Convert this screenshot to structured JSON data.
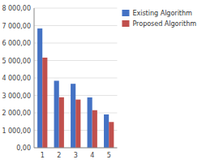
{
  "chart_data": {
    "type": "bar",
    "categories": [
      "1",
      "2",
      "3",
      "4",
      "5"
    ],
    "series": [
      {
        "name": "Existing Algorithm",
        "color": "#4472C4",
        "values": [
          6833.52,
          3839.24,
          3665.24,
          2883.18,
          1910.33
        ]
      },
      {
        "name": "Proposed Algorithm",
        "color": "#C0504D",
        "values": [
          5164.11,
          2892.02,
          2760.99,
          2151.96,
          1475.64
        ]
      }
    ],
    "ylim": [
      0,
      8000
    ],
    "yticks": [
      {
        "value": 0,
        "label": "0,00"
      },
      {
        "value": 1000,
        "label": "1 000,00"
      },
      {
        "value": 2000,
        "label": "2 000,00"
      },
      {
        "value": 3000,
        "label": "3 000,00"
      },
      {
        "value": 4000,
        "label": "4 000,00"
      },
      {
        "value": 5000,
        "label": "5 000,00"
      },
      {
        "value": 6000,
        "label": "6 000,00"
      },
      {
        "value": 7000,
        "label": "7 000,00"
      },
      {
        "value": 8000,
        "label": "8 000,00"
      }
    ],
    "grid": true,
    "legend": "right"
  }
}
